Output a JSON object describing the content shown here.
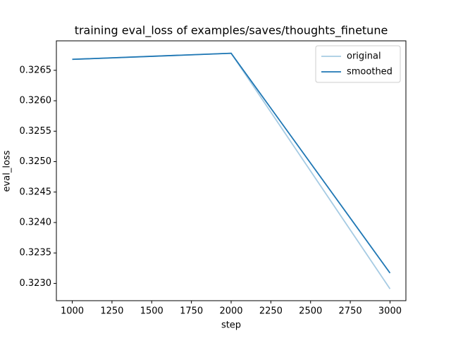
{
  "chart_data": {
    "type": "line",
    "title": "training eval_loss of examples/saves/thoughts_finetune",
    "x_label": "step",
    "y_label": "eval_loss",
    "x": [
      1000,
      2000,
      3000
    ],
    "series": [
      {
        "name": "original",
        "color": "#a6cbe3",
        "values": [
          0.32668,
          0.32678,
          0.32291
        ]
      },
      {
        "name": "smoothed",
        "color": "#1f77b4",
        "values": [
          0.32668,
          0.32678,
          0.32317
        ]
      }
    ],
    "xlim": [
      900,
      3100
    ],
    "xticks": [
      1000,
      1250,
      1500,
      1750,
      2000,
      2250,
      2500,
      2750,
      3000
    ],
    "ylim": [
      0.322716,
      0.326984
    ],
    "yticks": [
      {
        "value": 0.323,
        "label": "0.3230"
      },
      {
        "value": 0.3235,
        "label": "0.3235"
      },
      {
        "value": 0.324,
        "label": "0.3240"
      },
      {
        "value": 0.3245,
        "label": "0.3245"
      },
      {
        "value": 0.325,
        "label": "0.3250"
      },
      {
        "value": 0.3255,
        "label": "0.3255"
      },
      {
        "value": 0.326,
        "label": "0.3260"
      },
      {
        "value": 0.3265,
        "label": "0.3265"
      }
    ],
    "legend": "upper right"
  }
}
